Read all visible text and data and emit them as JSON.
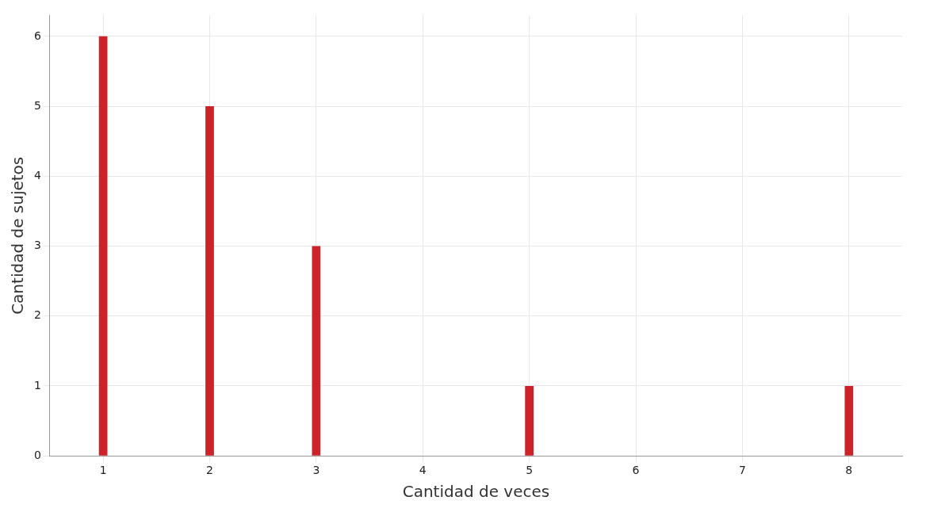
{
  "chart_data": {
    "type": "bar",
    "xlabel": "Cantidad de veces",
    "ylabel": "Cantidad de sujetos",
    "categories": [
      "1",
      "2",
      "3",
      "4",
      "5",
      "6",
      "7",
      "8"
    ],
    "values": [
      6,
      5,
      3,
      0,
      1,
      0,
      0,
      1
    ],
    "color": "#cc2229",
    "ylim": [
      0,
      6.3
    ],
    "yticks": [
      0,
      1,
      2,
      3,
      4,
      5,
      6
    ],
    "grid": true
  }
}
